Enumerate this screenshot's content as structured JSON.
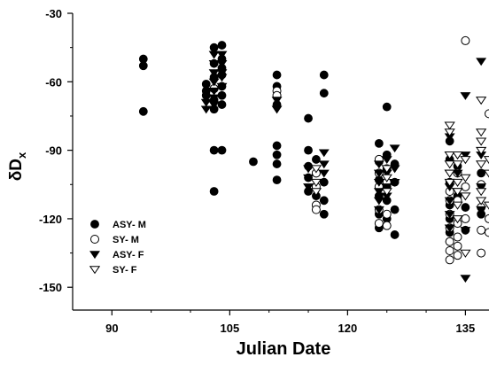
{
  "chart_data": {
    "type": "scatter",
    "xlabel": "Julian Date",
    "ylabel": "δD",
    "ylabel_subscript": "x",
    "xlim": [
      85,
      138
    ],
    "ylim": [
      -160,
      -30
    ],
    "xticks": [
      90,
      105,
      120,
      135
    ],
    "yticks": [
      -30,
      -60,
      -90,
      -120,
      -150
    ],
    "legend_position": "bottom-left",
    "series": [
      {
        "name": "ASY- M",
        "marker": "filled-circle",
        "color": "#000000",
        "points": [
          [
            94,
            -50
          ],
          [
            94,
            -53
          ],
          [
            94,
            -73
          ],
          [
            102,
            -61
          ],
          [
            102,
            -64
          ],
          [
            102,
            -66
          ],
          [
            103,
            -45
          ],
          [
            103,
            -52
          ],
          [
            103,
            -58
          ],
          [
            103,
            -63
          ],
          [
            103,
            -68
          ],
          [
            103,
            -72
          ],
          [
            103,
            -90
          ],
          [
            103,
            -108
          ],
          [
            104,
            -44
          ],
          [
            104,
            -50
          ],
          [
            104,
            -54
          ],
          [
            104,
            -57
          ],
          [
            104,
            -62
          ],
          [
            104,
            -66
          ],
          [
            104,
            -70
          ],
          [
            104,
            -90
          ],
          [
            108,
            -95
          ],
          [
            111,
            -57
          ],
          [
            111,
            -62
          ],
          [
            111,
            -70
          ],
          [
            111,
            -88
          ],
          [
            111,
            -92
          ],
          [
            111,
            -96
          ],
          [
            111,
            -103
          ],
          [
            115,
            -76
          ],
          [
            115,
            -90
          ],
          [
            115,
            -97
          ],
          [
            115,
            -102
          ],
          [
            115,
            -108
          ],
          [
            116,
            -94
          ],
          [
            116,
            -100
          ],
          [
            116,
            -110
          ],
          [
            117,
            -57
          ],
          [
            117,
            -65
          ],
          [
            117,
            -104
          ],
          [
            117,
            -112
          ],
          [
            117,
            -118
          ],
          [
            124,
            -87
          ],
          [
            124,
            -95
          ],
          [
            124,
            -103
          ],
          [
            124,
            -110
          ],
          [
            124,
            -118
          ],
          [
            124,
            -124
          ],
          [
            125,
            -71
          ],
          [
            125,
            -92
          ],
          [
            125,
            -98
          ],
          [
            125,
            -106
          ],
          [
            125,
            -112
          ],
          [
            125,
            -120
          ],
          [
            126,
            -96
          ],
          [
            126,
            -104
          ],
          [
            126,
            -116
          ],
          [
            126,
            -127
          ],
          [
            133,
            -86
          ],
          [
            133,
            -94
          ],
          [
            133,
            -104
          ],
          [
            133,
            -114
          ],
          [
            133,
            -120
          ],
          [
            133,
            -126
          ],
          [
            133,
            -130
          ],
          [
            134,
            -97
          ],
          [
            134,
            -110
          ],
          [
            135,
            -115
          ],
          [
            135,
            -125
          ],
          [
            137,
            -100
          ],
          [
            137,
            -118
          ]
        ]
      },
      {
        "name": "SY- M",
        "marker": "open-circle",
        "color": "#000000",
        "points": [
          [
            103,
            -63
          ],
          [
            111,
            -64
          ],
          [
            111,
            -66
          ],
          [
            116,
            -100
          ],
          [
            116,
            -106
          ],
          [
            116,
            -114
          ],
          [
            116,
            -116
          ],
          [
            124,
            -94
          ],
          [
            124,
            -100
          ],
          [
            124,
            -106
          ],
          [
            124,
            -116
          ],
          [
            124,
            -122
          ],
          [
            125,
            -104
          ],
          [
            125,
            -118
          ],
          [
            125,
            -123
          ],
          [
            133,
            -108
          ],
          [
            133,
            -112
          ],
          [
            133,
            -118
          ],
          [
            133,
            -124
          ],
          [
            133,
            -130
          ],
          [
            133,
            -134
          ],
          [
            133,
            -138
          ],
          [
            134,
            -100
          ],
          [
            134,
            -112
          ],
          [
            134,
            -122
          ],
          [
            134,
            -128
          ],
          [
            134,
            -132
          ],
          [
            134,
            -136
          ],
          [
            135,
            -42
          ],
          [
            135,
            -106
          ],
          [
            135,
            -120
          ],
          [
            137,
            -105
          ],
          [
            137,
            -115
          ],
          [
            137,
            -125
          ],
          [
            137,
            -135
          ],
          [
            138,
            -74
          ],
          [
            138,
            -120
          ],
          [
            138,
            -126
          ]
        ]
      },
      {
        "name": "ASY- F",
        "marker": "filled-triangle-down",
        "color": "#000000",
        "points": [
          [
            102,
            -69
          ],
          [
            102,
            -72
          ],
          [
            103,
            -48
          ],
          [
            103,
            -52
          ],
          [
            103,
            -56
          ],
          [
            103,
            -60
          ],
          [
            103,
            -64
          ],
          [
            103,
            -67
          ],
          [
            103,
            -70
          ],
          [
            104,
            -48
          ],
          [
            104,
            -52
          ],
          [
            104,
            -56
          ],
          [
            104,
            -58
          ],
          [
            104,
            -62
          ],
          [
            111,
            -68
          ],
          [
            111,
            -72
          ],
          [
            115,
            -98
          ],
          [
            115,
            -102
          ],
          [
            115,
            -106
          ],
          [
            117,
            -91
          ],
          [
            117,
            -96
          ],
          [
            117,
            -100
          ],
          [
            124,
            -96
          ],
          [
            124,
            -100
          ],
          [
            124,
            -104
          ],
          [
            124,
            -108
          ],
          [
            124,
            -112
          ],
          [
            124,
            -116
          ],
          [
            125,
            -94
          ],
          [
            125,
            -100
          ],
          [
            125,
            -106
          ],
          [
            125,
            -110
          ],
          [
            126,
            -89
          ],
          [
            126,
            -98
          ],
          [
            126,
            -104
          ],
          [
            133,
            -84
          ],
          [
            133,
            -92
          ],
          [
            133,
            -100
          ],
          [
            133,
            -106
          ],
          [
            133,
            -112
          ],
          [
            133,
            -118
          ],
          [
            133,
            -124
          ],
          [
            134,
            -92
          ],
          [
            134,
            -100
          ],
          [
            134,
            -108
          ],
          [
            135,
            -66
          ],
          [
            135,
            -92
          ],
          [
            135,
            -125
          ],
          [
            135,
            -146
          ],
          [
            137,
            -51
          ],
          [
            137,
            -92
          ],
          [
            137,
            -106
          ],
          [
            137,
            -116
          ]
        ]
      },
      {
        "name": "SY- F",
        "marker": "open-triangle-down",
        "color": "#000000",
        "points": [
          [
            116,
            -98
          ],
          [
            116,
            -104
          ],
          [
            116,
            -108
          ],
          [
            125,
            -98
          ],
          [
            125,
            -102
          ],
          [
            125,
            -108
          ],
          [
            133,
            -79
          ],
          [
            133,
            -82
          ],
          [
            133,
            -92
          ],
          [
            133,
            -96
          ],
          [
            133,
            -100
          ],
          [
            133,
            -104
          ],
          [
            134,
            -92
          ],
          [
            134,
            -96
          ],
          [
            134,
            -104
          ],
          [
            134,
            -108
          ],
          [
            134,
            -114
          ],
          [
            134,
            -120
          ],
          [
            135,
            -94
          ],
          [
            135,
            -102
          ],
          [
            135,
            -110
          ],
          [
            135,
            -135
          ],
          [
            137,
            -68
          ],
          [
            137,
            -82
          ],
          [
            137,
            -86
          ],
          [
            137,
            -90
          ],
          [
            137,
            -96
          ],
          [
            137,
            -108
          ],
          [
            137,
            -112
          ],
          [
            138,
            -94
          ],
          [
            138,
            -100
          ],
          [
            138,
            -114
          ]
        ]
      }
    ]
  }
}
